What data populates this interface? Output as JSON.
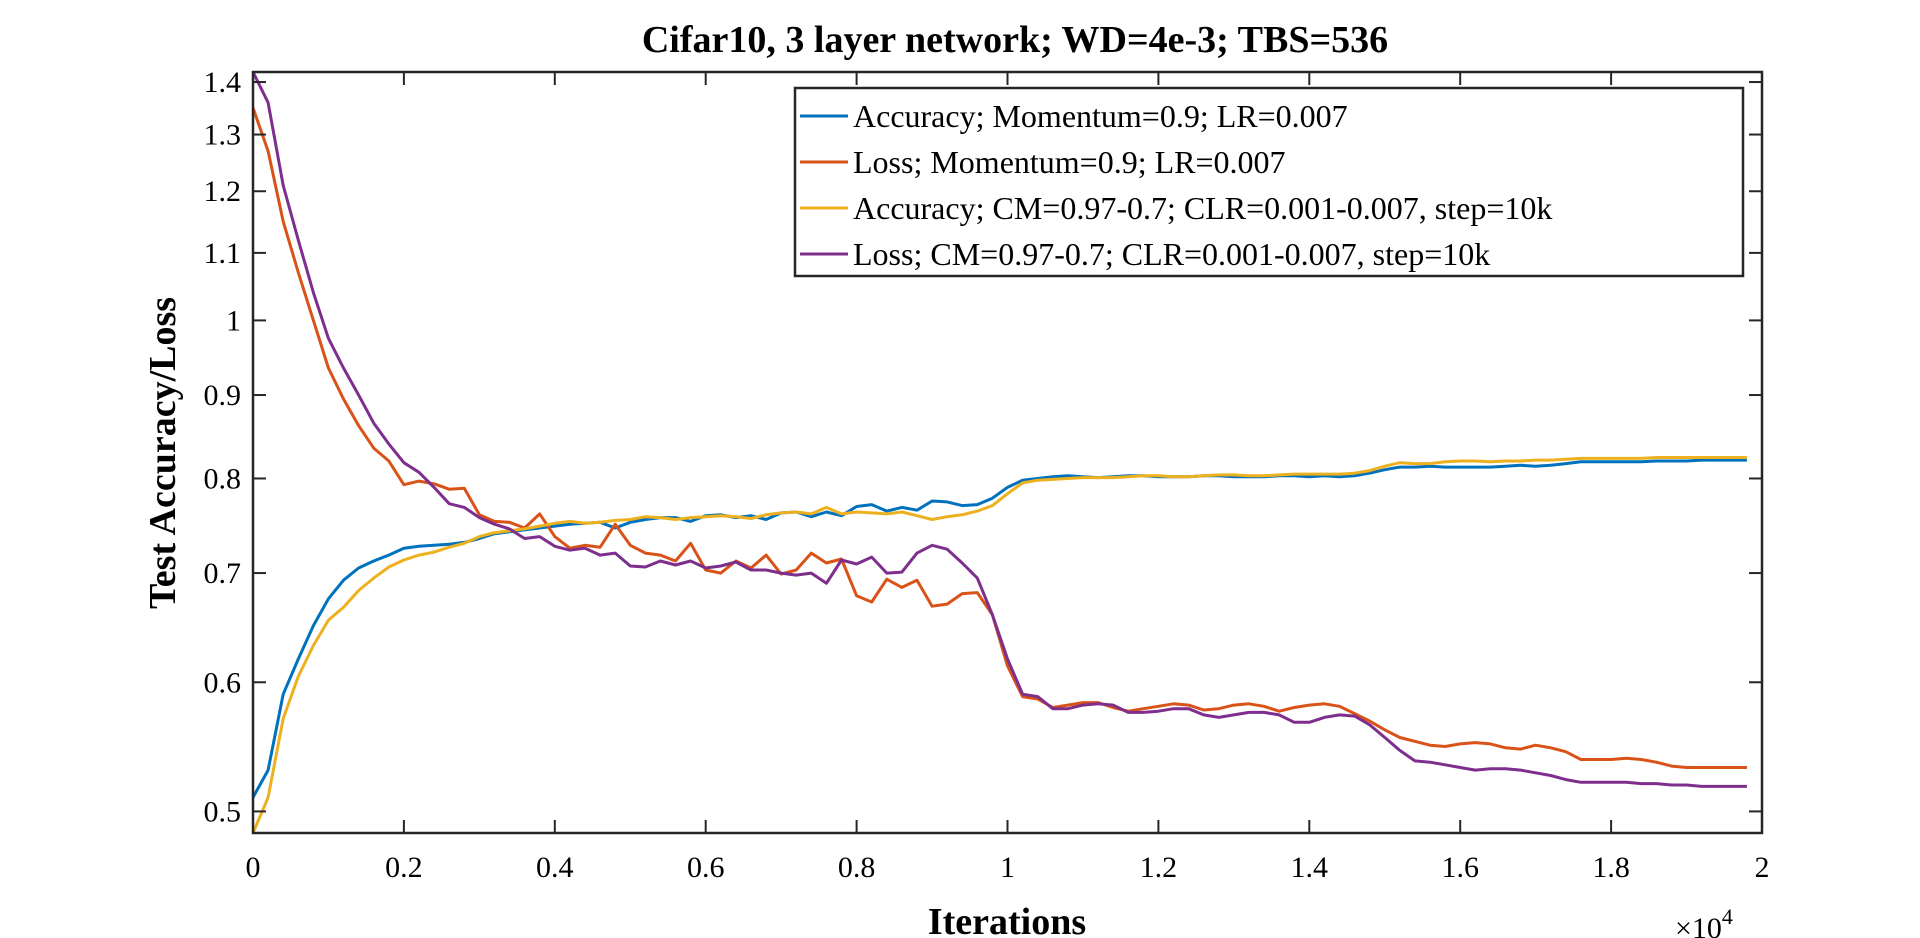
{
  "chart_data": {
    "type": "line",
    "title": "Cifar10, 3 layer network; WD=4e-3; TBS=536",
    "xlabel": "Iterations",
    "ylabel": "Test Accuracy/Loss",
    "x_exponent": "×10",
    "x_exponent_power": "4",
    "xlim": [
      0,
      2
    ],
    "ylim": [
      0.485,
      1.42
    ],
    "yscale": "log",
    "xticks": [
      0,
      0.2,
      0.4,
      0.6,
      0.8,
      1,
      1.2,
      1.4,
      1.6,
      1.8,
      2
    ],
    "xtick_labels": [
      "0",
      "0.2",
      "0.4",
      "0.6",
      "0.8",
      "1",
      "1.2",
      "1.4",
      "1.6",
      "1.8",
      "2"
    ],
    "yticks": [
      0.5,
      0.6,
      0.7,
      0.8,
      0.9,
      1,
      1.1,
      1.2,
      1.3,
      1.4
    ],
    "ytick_labels": [
      "0.5",
      "0.6",
      "0.7",
      "0.8",
      "0.9",
      "1",
      "1.1",
      "1.2",
      "1.3",
      "1.4"
    ],
    "legend_position": "top-right",
    "grid": false,
    "series": [
      {
        "name": "Accuracy; Momentum=0.9; LR=0.007",
        "color": "#0072BD",
        "x": [
          0,
          0.02,
          0.04,
          0.06,
          0.08,
          0.1,
          0.12,
          0.14,
          0.16,
          0.18,
          0.2,
          0.22,
          0.24,
          0.26,
          0.28,
          0.3,
          0.32,
          0.34,
          0.36,
          0.38,
          0.4,
          0.42,
          0.44,
          0.46,
          0.48,
          0.5,
          0.52,
          0.54,
          0.56,
          0.58,
          0.6,
          0.62,
          0.64,
          0.66,
          0.68,
          0.7,
          0.72,
          0.74,
          0.76,
          0.78,
          0.8,
          0.82,
          0.84,
          0.86,
          0.88,
          0.9,
          0.92,
          0.94,
          0.96,
          0.98,
          1.0,
          1.02,
          1.04,
          1.06,
          1.08,
          1.1,
          1.12,
          1.14,
          1.16,
          1.18,
          1.2,
          1.22,
          1.24,
          1.26,
          1.28,
          1.3,
          1.32,
          1.34,
          1.36,
          1.38,
          1.4,
          1.42,
          1.44,
          1.46,
          1.48,
          1.5,
          1.52,
          1.54,
          1.56,
          1.58,
          1.6,
          1.62,
          1.64,
          1.66,
          1.68,
          1.7,
          1.72,
          1.74,
          1.76,
          1.78,
          1.8,
          1.82,
          1.84,
          1.86,
          1.88,
          1.9,
          1.92,
          1.94,
          1.96,
          1.98
        ],
        "y": [
          0.51,
          0.53,
          0.59,
          0.62,
          0.65,
          0.675,
          0.693,
          0.705,
          0.712,
          0.718,
          0.725,
          0.727,
          0.728,
          0.729,
          0.731,
          0.735,
          0.74,
          0.742,
          0.744,
          0.746,
          0.748,
          0.75,
          0.751,
          0.752,
          0.746,
          0.752,
          0.755,
          0.757,
          0.757,
          0.753,
          0.759,
          0.76,
          0.757,
          0.759,
          0.755,
          0.762,
          0.763,
          0.758,
          0.763,
          0.759,
          0.769,
          0.771,
          0.764,
          0.768,
          0.765,
          0.775,
          0.774,
          0.77,
          0.771,
          0.778,
          0.79,
          0.798,
          0.8,
          0.802,
          0.803,
          0.802,
          0.801,
          0.802,
          0.803,
          0.803,
          0.802,
          0.802,
          0.802,
          0.803,
          0.803,
          0.802,
          0.802,
          0.802,
          0.803,
          0.803,
          0.802,
          0.803,
          0.802,
          0.803,
          0.806,
          0.81,
          0.813,
          0.813,
          0.814,
          0.813,
          0.813,
          0.813,
          0.813,
          0.814,
          0.815,
          0.814,
          0.815,
          0.817,
          0.819,
          0.819,
          0.819,
          0.819,
          0.819,
          0.82,
          0.82,
          0.82,
          0.821,
          0.821,
          0.821,
          0.821
        ]
      },
      {
        "name": "Loss; Momentum=0.9; LR=0.007",
        "color": "#D95319",
        "x": [
          0,
          0.02,
          0.04,
          0.06,
          0.08,
          0.1,
          0.12,
          0.14,
          0.16,
          0.18,
          0.2,
          0.22,
          0.24,
          0.26,
          0.28,
          0.3,
          0.32,
          0.34,
          0.36,
          0.38,
          0.4,
          0.42,
          0.44,
          0.46,
          0.48,
          0.5,
          0.52,
          0.54,
          0.56,
          0.58,
          0.6,
          0.62,
          0.64,
          0.66,
          0.68,
          0.7,
          0.72,
          0.74,
          0.76,
          0.78,
          0.8,
          0.82,
          0.84,
          0.86,
          0.88,
          0.9,
          0.92,
          0.94,
          0.96,
          0.98,
          1.0,
          1.02,
          1.04,
          1.06,
          1.08,
          1.1,
          1.12,
          1.14,
          1.16,
          1.18,
          1.2,
          1.22,
          1.24,
          1.26,
          1.28,
          1.3,
          1.32,
          1.34,
          1.36,
          1.38,
          1.4,
          1.42,
          1.44,
          1.46,
          1.48,
          1.5,
          1.52,
          1.54,
          1.56,
          1.58,
          1.6,
          1.62,
          1.64,
          1.66,
          1.68,
          1.7,
          1.72,
          1.74,
          1.76,
          1.78,
          1.8,
          1.82,
          1.84,
          1.86,
          1.88,
          1.9,
          1.92,
          1.94,
          1.96,
          1.98
        ],
        "y": [
          1.35,
          1.27,
          1.15,
          1.07,
          1.0,
          0.935,
          0.895,
          0.862,
          0.835,
          0.82,
          0.793,
          0.797,
          0.794,
          0.788,
          0.789,
          0.76,
          0.753,
          0.752,
          0.746,
          0.761,
          0.737,
          0.725,
          0.728,
          0.726,
          0.75,
          0.728,
          0.72,
          0.718,
          0.712,
          0.73,
          0.703,
          0.7,
          0.712,
          0.705,
          0.718,
          0.699,
          0.703,
          0.72,
          0.71,
          0.714,
          0.678,
          0.672,
          0.694,
          0.686,
          0.693,
          0.668,
          0.67,
          0.68,
          0.681,
          0.66,
          0.614,
          0.588,
          0.586,
          0.579,
          0.581,
          0.583,
          0.583,
          0.579,
          0.576,
          0.578,
          0.58,
          0.582,
          0.581,
          0.577,
          0.578,
          0.581,
          0.582,
          0.58,
          0.576,
          0.579,
          0.581,
          0.582,
          0.58,
          0.574,
          0.568,
          0.561,
          0.555,
          0.552,
          0.549,
          0.548,
          0.55,
          0.551,
          0.55,
          0.547,
          0.546,
          0.549,
          0.547,
          0.544,
          0.538,
          0.538,
          0.538,
          0.539,
          0.538,
          0.536,
          0.533,
          0.532,
          0.532,
          0.532,
          0.532,
          0.532
        ]
      },
      {
        "name": "Accuracy; CM=0.97-0.7; CLR=0.001-0.007, step=10k",
        "color": "#EDB120",
        "x": [
          0,
          0.02,
          0.04,
          0.06,
          0.08,
          0.1,
          0.12,
          0.14,
          0.16,
          0.18,
          0.2,
          0.22,
          0.24,
          0.26,
          0.28,
          0.3,
          0.32,
          0.34,
          0.36,
          0.38,
          0.4,
          0.42,
          0.44,
          0.46,
          0.48,
          0.5,
          0.52,
          0.54,
          0.56,
          0.58,
          0.6,
          0.62,
          0.64,
          0.66,
          0.68,
          0.7,
          0.72,
          0.74,
          0.76,
          0.78,
          0.8,
          0.82,
          0.84,
          0.86,
          0.88,
          0.9,
          0.92,
          0.94,
          0.96,
          0.98,
          1.0,
          1.02,
          1.04,
          1.06,
          1.08,
          1.1,
          1.12,
          1.14,
          1.16,
          1.18,
          1.2,
          1.22,
          1.24,
          1.26,
          1.28,
          1.3,
          1.32,
          1.34,
          1.36,
          1.38,
          1.4,
          1.42,
          1.44,
          1.46,
          1.48,
          1.5,
          1.52,
          1.54,
          1.56,
          1.58,
          1.6,
          1.62,
          1.64,
          1.66,
          1.68,
          1.7,
          1.72,
          1.74,
          1.76,
          1.78,
          1.8,
          1.82,
          1.84,
          1.86,
          1.88,
          1.9,
          1.92,
          1.94,
          1.96,
          1.98
        ],
        "y": [
          0.485,
          0.51,
          0.57,
          0.605,
          0.632,
          0.655,
          0.667,
          0.683,
          0.695,
          0.706,
          0.713,
          0.718,
          0.721,
          0.726,
          0.73,
          0.737,
          0.741,
          0.743,
          0.745,
          0.748,
          0.751,
          0.753,
          0.751,
          0.752,
          0.754,
          0.755,
          0.758,
          0.757,
          0.755,
          0.757,
          0.758,
          0.759,
          0.758,
          0.756,
          0.76,
          0.762,
          0.763,
          0.761,
          0.768,
          0.761,
          0.763,
          0.762,
          0.761,
          0.763,
          0.759,
          0.755,
          0.758,
          0.76,
          0.764,
          0.77,
          0.783,
          0.795,
          0.798,
          0.799,
          0.8,
          0.801,
          0.801,
          0.801,
          0.802,
          0.803,
          0.803,
          0.802,
          0.802,
          0.803,
          0.804,
          0.804,
          0.803,
          0.803,
          0.804,
          0.805,
          0.805,
          0.805,
          0.805,
          0.806,
          0.809,
          0.814,
          0.818,
          0.817,
          0.817,
          0.819,
          0.82,
          0.82,
          0.819,
          0.82,
          0.82,
          0.821,
          0.821,
          0.822,
          0.823,
          0.823,
          0.823,
          0.823,
          0.823,
          0.824,
          0.824,
          0.824,
          0.824,
          0.824,
          0.824,
          0.824
        ]
      },
      {
        "name": "Loss; CM=0.97-0.7; CLR=0.001-0.007, step=10k",
        "color": "#7E2F8E",
        "x": [
          0,
          0.02,
          0.04,
          0.06,
          0.08,
          0.1,
          0.12,
          0.14,
          0.16,
          0.18,
          0.2,
          0.22,
          0.24,
          0.26,
          0.28,
          0.3,
          0.32,
          0.34,
          0.36,
          0.38,
          0.4,
          0.42,
          0.44,
          0.46,
          0.48,
          0.5,
          0.52,
          0.54,
          0.56,
          0.58,
          0.6,
          0.62,
          0.64,
          0.66,
          0.68,
          0.7,
          0.72,
          0.74,
          0.76,
          0.78,
          0.8,
          0.82,
          0.84,
          0.86,
          0.88,
          0.9,
          0.92,
          0.94,
          0.96,
          0.98,
          1.0,
          1.02,
          1.04,
          1.06,
          1.08,
          1.1,
          1.12,
          1.14,
          1.16,
          1.18,
          1.2,
          1.22,
          1.24,
          1.26,
          1.28,
          1.3,
          1.32,
          1.34,
          1.36,
          1.38,
          1.4,
          1.42,
          1.44,
          1.46,
          1.48,
          1.5,
          1.52,
          1.54,
          1.56,
          1.58,
          1.6,
          1.62,
          1.64,
          1.66,
          1.68,
          1.7,
          1.72,
          1.74,
          1.76,
          1.78,
          1.8,
          1.82,
          1.84,
          1.86,
          1.88,
          1.9,
          1.92,
          1.94,
          1.96,
          1.98
        ],
        "y": [
          1.42,
          1.36,
          1.21,
          1.12,
          1.04,
          0.975,
          0.935,
          0.9,
          0.865,
          0.84,
          0.818,
          0.807,
          0.79,
          0.772,
          0.768,
          0.757,
          0.75,
          0.745,
          0.735,
          0.737,
          0.727,
          0.723,
          0.725,
          0.718,
          0.72,
          0.707,
          0.706,
          0.712,
          0.708,
          0.712,
          0.705,
          0.707,
          0.711,
          0.703,
          0.703,
          0.7,
          0.698,
          0.7,
          0.69,
          0.713,
          0.709,
          0.716,
          0.7,
          0.701,
          0.72,
          0.728,
          0.724,
          0.71,
          0.695,
          0.66,
          0.62,
          0.59,
          0.588,
          0.578,
          0.578,
          0.581,
          0.582,
          0.581,
          0.575,
          0.575,
          0.576,
          0.578,
          0.578,
          0.573,
          0.571,
          0.573,
          0.575,
          0.575,
          0.573,
          0.567,
          0.567,
          0.571,
          0.573,
          0.572,
          0.565,
          0.555,
          0.545,
          0.537,
          0.536,
          0.534,
          0.532,
          0.53,
          0.531,
          0.531,
          0.53,
          0.528,
          0.526,
          0.523,
          0.521,
          0.521,
          0.521,
          0.521,
          0.52,
          0.52,
          0.519,
          0.519,
          0.518,
          0.518,
          0.518,
          0.518
        ]
      }
    ]
  }
}
